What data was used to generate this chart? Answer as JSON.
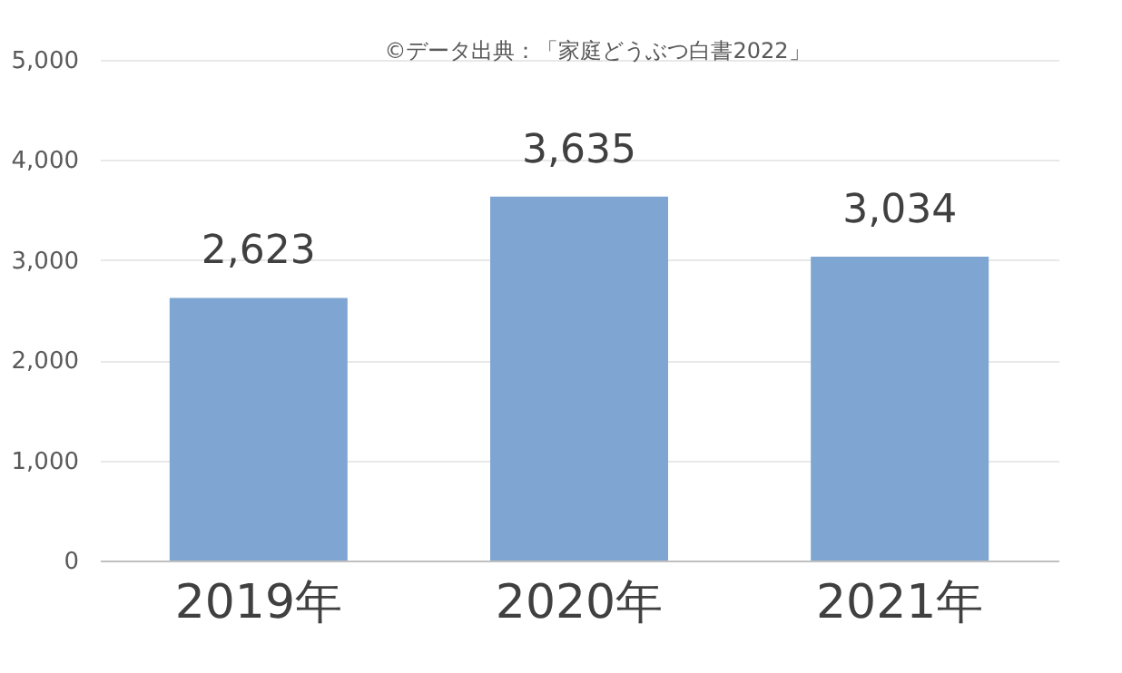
{
  "chart_data": {
    "type": "bar",
    "categories": [
      "2019年",
      "2020年",
      "2021年"
    ],
    "values": [
      2623,
      3635,
      3034
    ],
    "color": "#7fa6d2",
    "value_labels": [
      "2,623",
      "3,635",
      "3,034"
    ],
    "ylim": [
      0,
      5000
    ],
    "yticks": [
      0,
      {
        "value": 1000,
        "label": "1,000"
      },
      {
        "value": 2000,
        "label": "2,000"
      },
      {
        "value": 3000,
        "label": "3,000"
      },
      {
        "value": 4000,
        "label": "4,000"
      },
      {
        "value": 5000,
        "label": "5,000"
      }
    ],
    "grid": "y",
    "annotations": [
      "©データ出典：「家庭どうぶつ白書2022」"
    ]
  }
}
